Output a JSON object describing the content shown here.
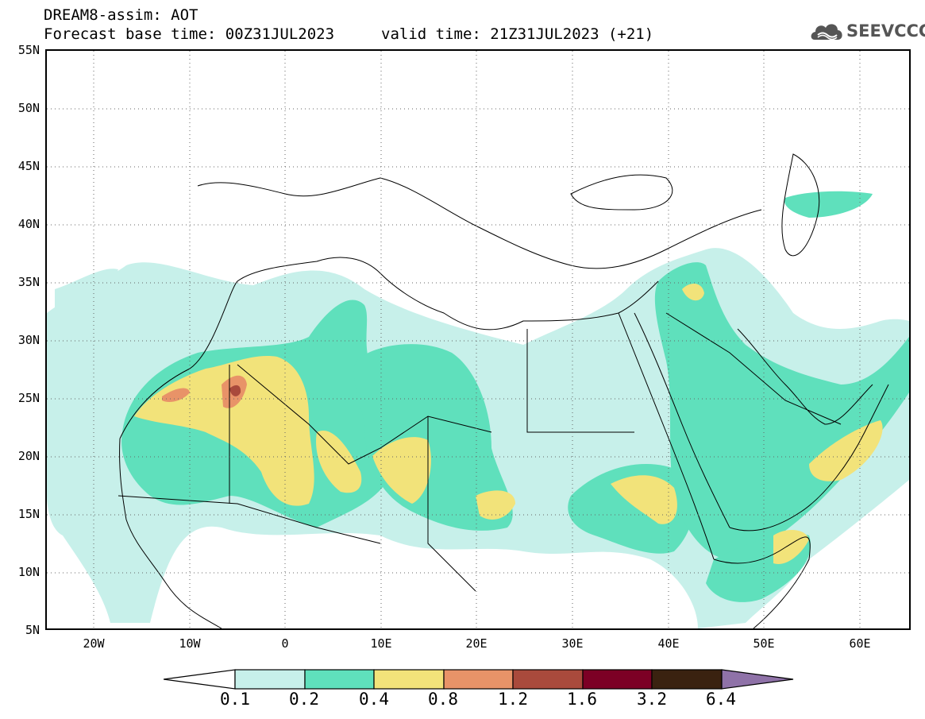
{
  "title": {
    "line1": "DREAM8-assim: AOT",
    "line2": "Forecast base time: 00Z31JUL2023",
    "valid": "valid time: 21Z31JUL2023 (+21)"
  },
  "logo": {
    "text": "SEEVCCC",
    "icon": "cloud-icon"
  },
  "map": {
    "lat_labels": [
      "55N",
      "50N",
      "45N",
      "40N",
      "35N",
      "30N",
      "25N",
      "20N",
      "15N",
      "10N",
      "5N"
    ],
    "lon_labels": [
      "20W",
      "10W",
      "0",
      "10E",
      "20E",
      "30E",
      "40E",
      "50E",
      "60E"
    ],
    "lat_range": [
      5,
      55
    ],
    "lon_range": [
      -25,
      65
    ],
    "grid": "dotted"
  },
  "colorbar": {
    "labels": [
      "0.1",
      "0.2",
      "0.4",
      "0.8",
      "1.2",
      "1.6",
      "3.2",
      "6.4"
    ],
    "colors": [
      "#ffffff",
      "#c7f0ea",
      "#5fe0bc",
      "#f2e37a",
      "#e89368",
      "#a94a3c",
      "#7c0025",
      "#3a2210",
      "#8f72a8"
    ]
  },
  "palette": {
    "light": "#c7f0ea",
    "medium": "#5fe0bc",
    "yellow": "#f2e37a",
    "orange": "#e89368",
    "red": "#a94a3c"
  }
}
